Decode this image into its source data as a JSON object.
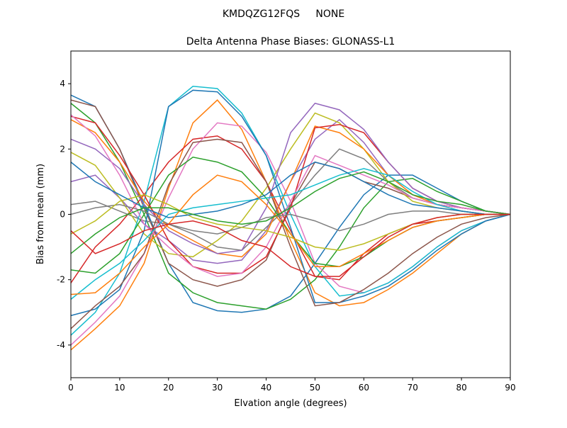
{
  "chart_data": {
    "type": "line",
    "suptitle": "KMDQZG12FQS     NONE",
    "title": "Delta Antenna Phase Biases: GLONASS-L1",
    "x_label": "Elvation angle (degrees)",
    "y_label": "Bias from mean (mm)",
    "x": [
      0,
      5,
      10,
      15,
      20,
      25,
      30,
      35,
      40,
      45,
      50,
      55,
      60,
      65,
      70,
      75,
      80,
      85,
      90
    ],
    "xlim": [
      0,
      90
    ],
    "xticks": [
      0,
      10,
      20,
      30,
      40,
      50,
      60,
      70,
      80,
      90
    ],
    "ylim": [
      -5,
      5
    ],
    "yticks": [
      -4,
      -2,
      0,
      2,
      4
    ],
    "series": [
      {
        "color": "#1f77b4",
        "values": [
          3.65,
          3.3,
          2.0,
          0.3,
          -1.5,
          -2.7,
          -2.95,
          -3.0,
          -2.9,
          -2.5,
          -1.5,
          -0.4,
          0.6,
          1.2,
          1.2,
          0.8,
          0.4,
          0.1,
          0
        ]
      },
      {
        "color": "#ff7f0e",
        "values": [
          -4.15,
          -3.5,
          -2.8,
          -1.5,
          0.8,
          2.8,
          3.5,
          2.6,
          1.0,
          -0.8,
          -2.4,
          -2.8,
          -2.7,
          -2.3,
          -1.8,
          -1.2,
          -0.6,
          -0.2,
          0
        ]
      },
      {
        "color": "#2ca02c",
        "values": [
          3.4,
          2.8,
          1.6,
          0.0,
          -1.8,
          -2.4,
          -2.7,
          -2.8,
          -2.9,
          -2.6,
          -2.0,
          -1.0,
          0.2,
          1.0,
          1.1,
          0.7,
          0.4,
          0.1,
          0
        ]
      },
      {
        "color": "#d62728",
        "values": [
          -2.1,
          -1.0,
          -0.3,
          0.6,
          1.6,
          2.3,
          2.4,
          2.0,
          1.0,
          -0.5,
          -1.9,
          -2.0,
          -1.2,
          -0.6,
          -0.3,
          -0.2,
          -0.1,
          0.0,
          0
        ]
      },
      {
        "color": "#9467bd",
        "values": [
          1.0,
          1.2,
          0.5,
          -0.3,
          -0.8,
          -1.4,
          -1.5,
          -1.4,
          -0.5,
          1.0,
          2.3,
          2.9,
          2.2,
          1.2,
          0.6,
          0.3,
          0.2,
          0.1,
          0
        ]
      },
      {
        "color": "#8c564b",
        "values": [
          3.5,
          3.3,
          2.0,
          0.2,
          -1.5,
          -2.0,
          -2.2,
          -2.0,
          -1.4,
          0.3,
          1.6,
          1.4,
          1.0,
          0.8,
          0.5,
          0.3,
          0.2,
          0.1,
          0
        ]
      },
      {
        "color": "#e377c2",
        "values": [
          -4.0,
          -3.3,
          -2.5,
          -1.2,
          0.5,
          2.0,
          2.8,
          2.7,
          1.9,
          0.4,
          -1.5,
          -2.2,
          -2.4,
          -2.1,
          -1.6,
          -1.0,
          -0.5,
          -0.2,
          0
        ]
      },
      {
        "color": "#7f7f7f",
        "values": [
          0.3,
          0.4,
          0.1,
          -0.2,
          -0.3,
          -0.6,
          -1.0,
          -1.1,
          -0.4,
          0.3,
          1.2,
          2.0,
          1.7,
          1.0,
          0.5,
          0.3,
          0.2,
          0.1,
          0
        ]
      },
      {
        "color": "#bcbd22",
        "values": [
          1.9,
          1.5,
          0.5,
          -0.6,
          -1.2,
          -1.3,
          -0.8,
          -0.2,
          0.8,
          2.0,
          3.1,
          2.8,
          2.0,
          1.0,
          0.4,
          0.2,
          0.1,
          0.0,
          0
        ]
      },
      {
        "color": "#17becf",
        "values": [
          -3.7,
          -3.0,
          -1.8,
          0.4,
          3.3,
          3.92,
          3.85,
          3.1,
          1.8,
          0.0,
          -1.6,
          -2.5,
          -2.4,
          -2.1,
          -1.6,
          -1.0,
          -0.5,
          -0.2,
          0
        ]
      },
      {
        "color": "#1f77b4",
        "values": [
          -3.1,
          -2.9,
          -2.3,
          -0.5,
          3.3,
          3.8,
          3.75,
          3.0,
          1.8,
          -0.4,
          -2.7,
          -2.7,
          -2.5,
          -2.2,
          -1.7,
          -1.1,
          -0.6,
          -0.2,
          0
        ]
      },
      {
        "color": "#ff7f0e",
        "values": [
          2.9,
          2.5,
          1.6,
          0.4,
          -0.4,
          -0.8,
          -1.2,
          -1.3,
          -0.6,
          1.0,
          2.7,
          2.5,
          2.0,
          1.2,
          0.6,
          0.3,
          0.1,
          0.0,
          0
        ]
      },
      {
        "color": "#2ca02c",
        "values": [
          -1.7,
          -1.8,
          -1.2,
          0.0,
          1.2,
          1.75,
          1.6,
          1.3,
          0.5,
          -0.6,
          -1.5,
          -1.6,
          -1.3,
          -0.8,
          -0.4,
          -0.2,
          -0.1,
          0.0,
          0
        ]
      },
      {
        "color": "#d62728",
        "values": [
          3.0,
          2.8,
          1.8,
          0.6,
          -0.8,
          -1.6,
          -1.8,
          -1.8,
          -1.3,
          0.2,
          2.65,
          2.75,
          2.5,
          1.6,
          0.8,
          0.4,
          0.2,
          0.1,
          0
        ]
      },
      {
        "color": "#9467bd",
        "values": [
          2.3,
          2.0,
          1.4,
          0.3,
          -0.5,
          -0.9,
          -1.2,
          -1.1,
          0.2,
          2.5,
          3.4,
          3.2,
          2.6,
          1.6,
          0.8,
          0.4,
          0.2,
          0.1,
          0
        ]
      },
      {
        "color": "#8c564b",
        "values": [
          -3.5,
          -2.8,
          -2.2,
          -1.2,
          0.9,
          2.2,
          2.3,
          2.2,
          1.0,
          -1.0,
          -2.8,
          -2.7,
          -2.3,
          -1.8,
          -1.2,
          -0.7,
          -0.3,
          -0.1,
          0
        ]
      },
      {
        "color": "#e377c2",
        "values": [
          3.05,
          2.4,
          1.2,
          -0.3,
          -1.0,
          -1.6,
          -1.9,
          -1.8,
          -1.0,
          0.4,
          1.8,
          1.5,
          1.2,
          0.9,
          0.5,
          0.3,
          0.2,
          0.1,
          0
        ]
      },
      {
        "color": "#7f7f7f",
        "values": [
          0.0,
          0.2,
          0.3,
          0.1,
          -0.3,
          -0.5,
          -0.6,
          -0.4,
          -0.1,
          0.0,
          -0.2,
          -0.5,
          -0.3,
          0.0,
          0.1,
          0.1,
          0.0,
          0.0,
          0
        ]
      },
      {
        "color": "#bcbd22",
        "values": [
          -0.6,
          -0.2,
          0.4,
          0.6,
          0.3,
          -0.1,
          -0.3,
          -0.4,
          -0.5,
          -0.7,
          -1.0,
          -1.1,
          -0.9,
          -0.6,
          -0.3,
          -0.1,
          0.0,
          0.0,
          0
        ]
      },
      {
        "color": "#17becf",
        "values": [
          -2.6,
          -2.0,
          -1.5,
          -0.8,
          0.0,
          0.2,
          0.3,
          0.4,
          0.5,
          0.6,
          0.9,
          1.2,
          1.4,
          1.2,
          0.7,
          0.3,
          0.1,
          0.0,
          0
        ]
      },
      {
        "color": "#1f77b4",
        "values": [
          1.6,
          1.0,
          0.6,
          0.2,
          -0.1,
          0.0,
          0.1,
          0.3,
          0.6,
          1.2,
          1.6,
          1.4,
          1.0,
          0.6,
          0.3,
          0.2,
          0.1,
          0.0,
          0
        ]
      },
      {
        "color": "#ff7f0e",
        "values": [
          -2.45,
          -2.4,
          -1.8,
          -1.0,
          -0.3,
          0.6,
          1.2,
          1.0,
          0.3,
          -0.6,
          -1.6,
          -1.6,
          -1.2,
          -0.8,
          -0.4,
          -0.2,
          -0.1,
          0.0,
          0
        ]
      },
      {
        "color": "#2ca02c",
        "values": [
          -1.2,
          -0.6,
          -0.1,
          0.2,
          0.2,
          0.0,
          -0.2,
          -0.3,
          -0.2,
          0.2,
          0.7,
          1.1,
          1.3,
          1.0,
          0.6,
          0.4,
          0.3,
          0.1,
          0
        ]
      },
      {
        "color": "#d62728",
        "values": [
          -0.5,
          -1.2,
          -0.9,
          -0.5,
          -0.3,
          -0.2,
          -0.4,
          -0.8,
          -1.0,
          -1.6,
          -1.9,
          -1.9,
          -1.3,
          -0.7,
          -0.3,
          -0.1,
          0.0,
          0.0,
          0
        ]
      }
    ]
  }
}
